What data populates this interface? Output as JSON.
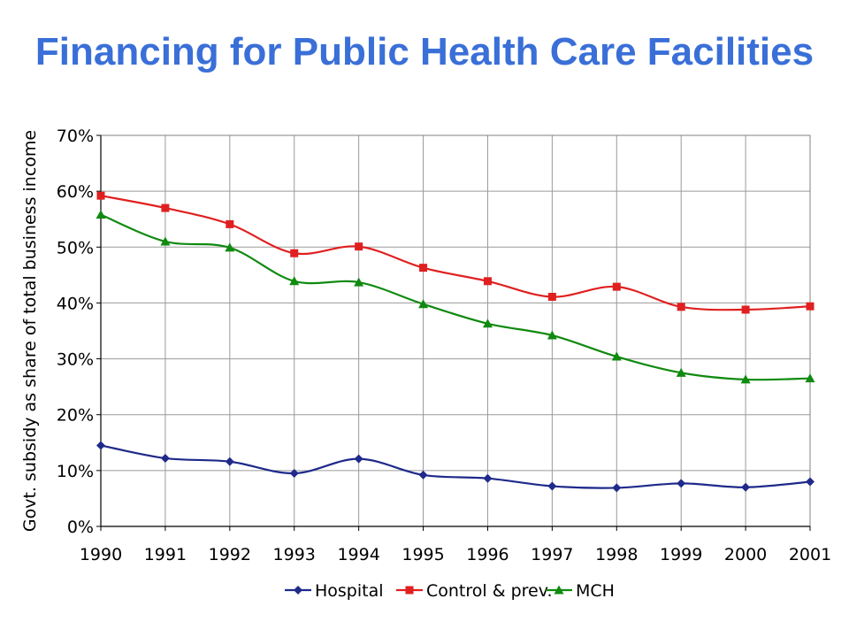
{
  "chart_data": {
    "type": "line",
    "title": "Financing for Public Health Care Facilities",
    "xlabel": "",
    "ylabel": "Govt. subsidy as share of total business income",
    "x": [
      "1990",
      "1991",
      "1992",
      "1993",
      "1994",
      "1995",
      "1996",
      "1997",
      "1998",
      "1999",
      "2000",
      "2001"
    ],
    "ylim": [
      0,
      70
    ],
    "y_ticks": [
      "0%",
      "10%",
      "20%",
      "30%",
      "40%",
      "50%",
      "60%",
      "70%"
    ],
    "grid": true,
    "legend_position": "bottom",
    "series": [
      {
        "name": "Hospital",
        "color": "#1f2a8a",
        "marker": "diamond",
        "values": [
          14.5,
          12.2,
          11.6,
          9.5,
          12.1,
          9.2,
          8.6,
          7.2,
          6.9,
          7.7,
          7.0,
          8.0
        ]
      },
      {
        "name": "Control & prev.",
        "color": "#e02020",
        "marker": "square",
        "values": [
          59.2,
          57.0,
          54.1,
          48.9,
          50.1,
          46.3,
          43.9,
          41.1,
          42.9,
          39.3,
          38.8,
          39.4
        ]
      },
      {
        "name": "MCH",
        "color": "#108a10",
        "marker": "triangle",
        "values": [
          55.8,
          51.0,
          49.9,
          43.9,
          43.7,
          39.8,
          36.3,
          34.2,
          30.4,
          27.5,
          26.3,
          26.5
        ]
      }
    ]
  }
}
